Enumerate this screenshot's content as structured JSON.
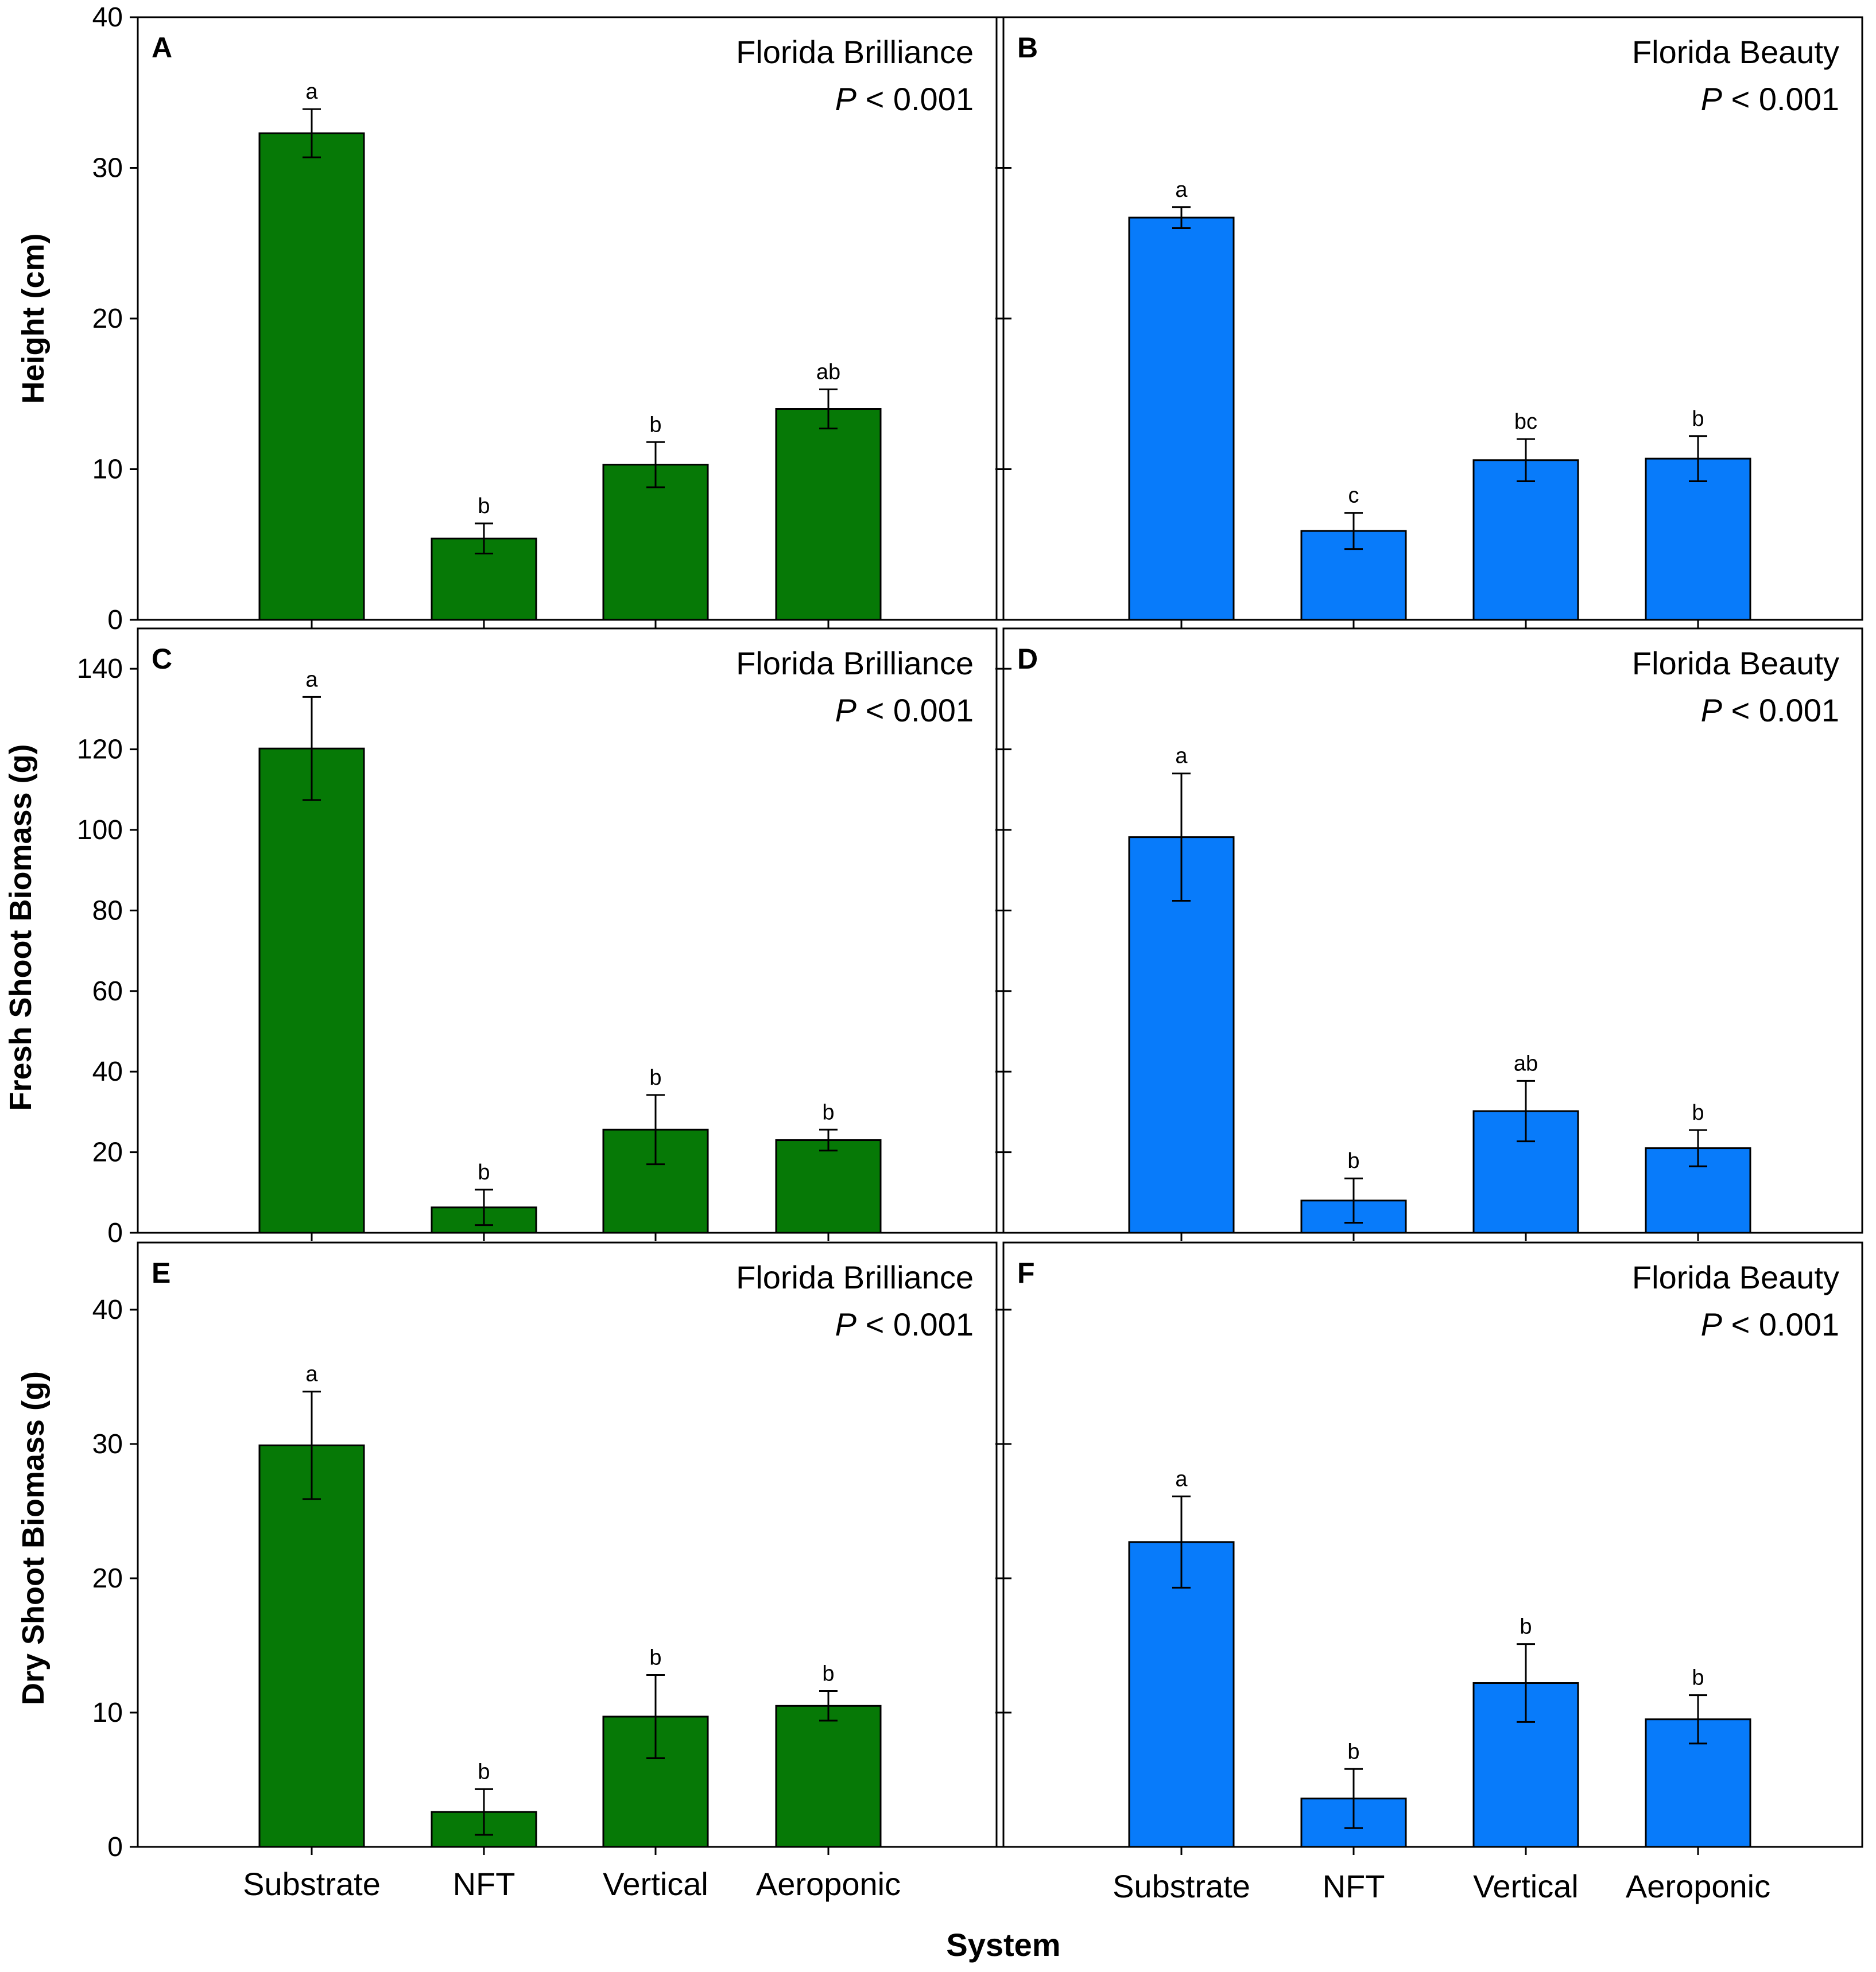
{
  "chart_data": [
    {
      "panel": "A",
      "type": "bar",
      "cultivar": "Florida Brilliance",
      "p_value": "< 0.001",
      "p_label": "P",
      "ylabel": "Height (cm)",
      "xlabel": "",
      "ylim": [
        0,
        40
      ],
      "yticks": [
        0,
        10,
        20,
        30,
        40
      ],
      "categories": [
        "Substrate",
        "NFT",
        "Vertical",
        "Aeroponic"
      ],
      "values": [
        32.3,
        5.4,
        10.3,
        14.0
      ],
      "errors": [
        1.6,
        1.0,
        1.5,
        1.3
      ],
      "letters": [
        "a",
        "b",
        "b",
        "ab"
      ],
      "color": "#067906"
    },
    {
      "panel": "B",
      "type": "bar",
      "cultivar": "Florida Beauty",
      "p_value": "< 0.001",
      "p_label": "P",
      "ylabel": "",
      "xlabel": "",
      "ylim": [
        0,
        40
      ],
      "yticks": [
        0,
        10,
        20,
        30,
        40
      ],
      "categories": [
        "Substrate",
        "NFT",
        "Vertical",
        "Aeroponic"
      ],
      "values": [
        26.7,
        5.9,
        10.6,
        10.7
      ],
      "errors": [
        0.7,
        1.2,
        1.4,
        1.5
      ],
      "letters": [
        "a",
        "c",
        "bc",
        "b"
      ],
      "color": "#087BFA"
    },
    {
      "panel": "C",
      "type": "bar",
      "cultivar": "Florida Brilliance",
      "p_value": "< 0.001",
      "p_label": "P",
      "ylabel": "Fresh Shoot Biomass (g)",
      "xlabel": "",
      "ylim": [
        0,
        150
      ],
      "yticks": [
        0,
        20,
        40,
        60,
        80,
        100,
        120,
        140
      ],
      "categories": [
        "Substrate",
        "NFT",
        "Vertical",
        "Aeroponic"
      ],
      "values": [
        120.2,
        6.3,
        25.6,
        23.0
      ],
      "errors": [
        12.8,
        4.4,
        8.6,
        2.6
      ],
      "letters": [
        "a",
        "b",
        "b",
        "b"
      ],
      "color": "#067906"
    },
    {
      "panel": "D",
      "type": "bar",
      "cultivar": "Florida Beauty",
      "p_value": "< 0.001",
      "p_label": "P",
      "ylabel": "",
      "xlabel": "",
      "ylim": [
        0,
        150
      ],
      "yticks": [
        0,
        20,
        40,
        60,
        80,
        100,
        120,
        140
      ],
      "categories": [
        "Substrate",
        "NFT",
        "Vertical",
        "Aeroponic"
      ],
      "values": [
        98.2,
        8.0,
        30.2,
        21.0
      ],
      "errors": [
        15.8,
        5.5,
        7.5,
        4.5
      ],
      "letters": [
        "a",
        "b",
        "ab",
        "b"
      ],
      "color": "#087BFA"
    },
    {
      "panel": "E",
      "type": "bar",
      "cultivar": "Florida Brilliance",
      "p_value": "< 0.001",
      "p_label": "P",
      "ylabel": "Dry Shoot Biomass (g)",
      "xlabel": "System",
      "ylim": [
        0,
        45
      ],
      "yticks": [
        0,
        10,
        20,
        30,
        40
      ],
      "categories": [
        "Substrate",
        "NFT",
        "Vertical",
        "Aeroponic"
      ],
      "values": [
        29.9,
        2.6,
        9.7,
        10.5
      ],
      "errors": [
        4.0,
        1.7,
        3.1,
        1.1
      ],
      "letters": [
        "a",
        "b",
        "b",
        "b"
      ],
      "color": "#067906"
    },
    {
      "panel": "F",
      "type": "bar",
      "cultivar": "Florida Beauty",
      "p_value": "< 0.001",
      "p_label": "P",
      "ylabel": "",
      "xlabel": "System",
      "ylim": [
        0,
        45
      ],
      "yticks": [
        0,
        10,
        20,
        30,
        40
      ],
      "categories": [
        "Substrate",
        "NFT",
        "Vertical",
        "Aeroponic"
      ],
      "values": [
        22.7,
        3.6,
        12.2,
        9.5
      ],
      "errors": [
        3.4,
        2.2,
        2.9,
        1.8
      ],
      "letters": [
        "a",
        "b",
        "b",
        "b"
      ],
      "color": "#087BFA"
    }
  ],
  "figure": {
    "shared_ylabel_top": "Height (cm)",
    "shared_ylabel_mid": "Fresh Shoot Biomass (g)",
    "shared_ylabel_bottom": "Dry Shoot Biomass (g)",
    "xlabel": "System",
    "categories": [
      "Substrate",
      "NFT",
      "Vertical",
      "Aeroponic"
    ]
  }
}
